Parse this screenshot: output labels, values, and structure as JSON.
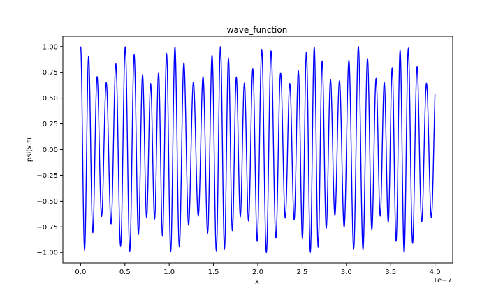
{
  "chart_data": {
    "type": "line",
    "title": "wave_function",
    "xlabel": "x",
    "ylabel": "psi(x,t)",
    "x_offset_text": "1e−7",
    "xlim": [
      -2e-08,
      4.2e-07
    ],
    "ylim": [
      -1.1,
      1.1
    ],
    "x_ticks": [
      0.0,
      0.5,
      1.0,
      1.5,
      2.0,
      2.5,
      3.0,
      3.5,
      4.0
    ],
    "x_tick_labels": [
      "0.0",
      "0.5",
      "1.0",
      "1.5",
      "2.0",
      "2.5",
      "3.0",
      "3.5",
      "4.0"
    ],
    "y_ticks": [
      1.0,
      0.75,
      0.5,
      0.25,
      0.0,
      -0.25,
      -0.5,
      -0.75,
      -1.0
    ],
    "y_tick_labels": [
      "1.00",
      "0.75",
      "0.50",
      "0.25",
      "0.00",
      "−0.25",
      "−0.50",
      "−0.75",
      "−1.00"
    ],
    "series": [
      {
        "color": "#0000ff",
        "x_range": [
          0.0,
          4e-07
        ],
        "approx_cycles": 41,
        "amplitude": 1.0
      }
    ],
    "grid": false,
    "legend": "none"
  }
}
